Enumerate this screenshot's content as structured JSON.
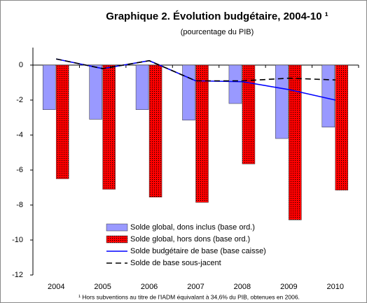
{
  "chart_data": {
    "type": "bar-line",
    "title": "Graphique 2. Évolution budgétaire, 2004-10 ¹",
    "subtitle": "(pourcentage du PIB)",
    "footnote": "¹ Hors subventions au titre de l'IADM équivalant à 34,6% du PIB, obtenues en 2006.",
    "categories": [
      "2004",
      "2005",
      "2006",
      "2007",
      "2008",
      "2009",
      "2010"
    ],
    "series": [
      {
        "name": "Solde global, dons inclus (base ord.)",
        "kind": "bar",
        "color": "#9999ff",
        "values": [
          -2.55,
          -3.1,
          -2.55,
          -3.15,
          -2.2,
          -4.2,
          -3.55
        ]
      },
      {
        "name": "Solde global, hors dons (base ord.)",
        "kind": "bar",
        "color": "#ff0000",
        "pattern": "dots",
        "values": [
          -6.5,
          -7.1,
          -7.55,
          -7.85,
          -5.65,
          -8.85,
          -7.15
        ]
      },
      {
        "name": "Solde budgétaire de base (base caisse)",
        "kind": "line",
        "color": "#0000ff",
        "values": [
          0.35,
          -0.2,
          0.25,
          -0.9,
          -0.95,
          -1.4,
          -2.0
        ]
      },
      {
        "name": "Solde de base sous-jacent",
        "kind": "line",
        "color": "#000000",
        "dashed": true,
        "values": [
          0.35,
          -0.2,
          0.25,
          -0.9,
          -0.9,
          -0.75,
          -0.85
        ]
      }
    ],
    "ylim": [
      -12,
      1
    ],
    "yticks": [
      0,
      -2,
      -4,
      -6,
      -8,
      -10,
      -12
    ],
    "legend": "lower-left"
  }
}
